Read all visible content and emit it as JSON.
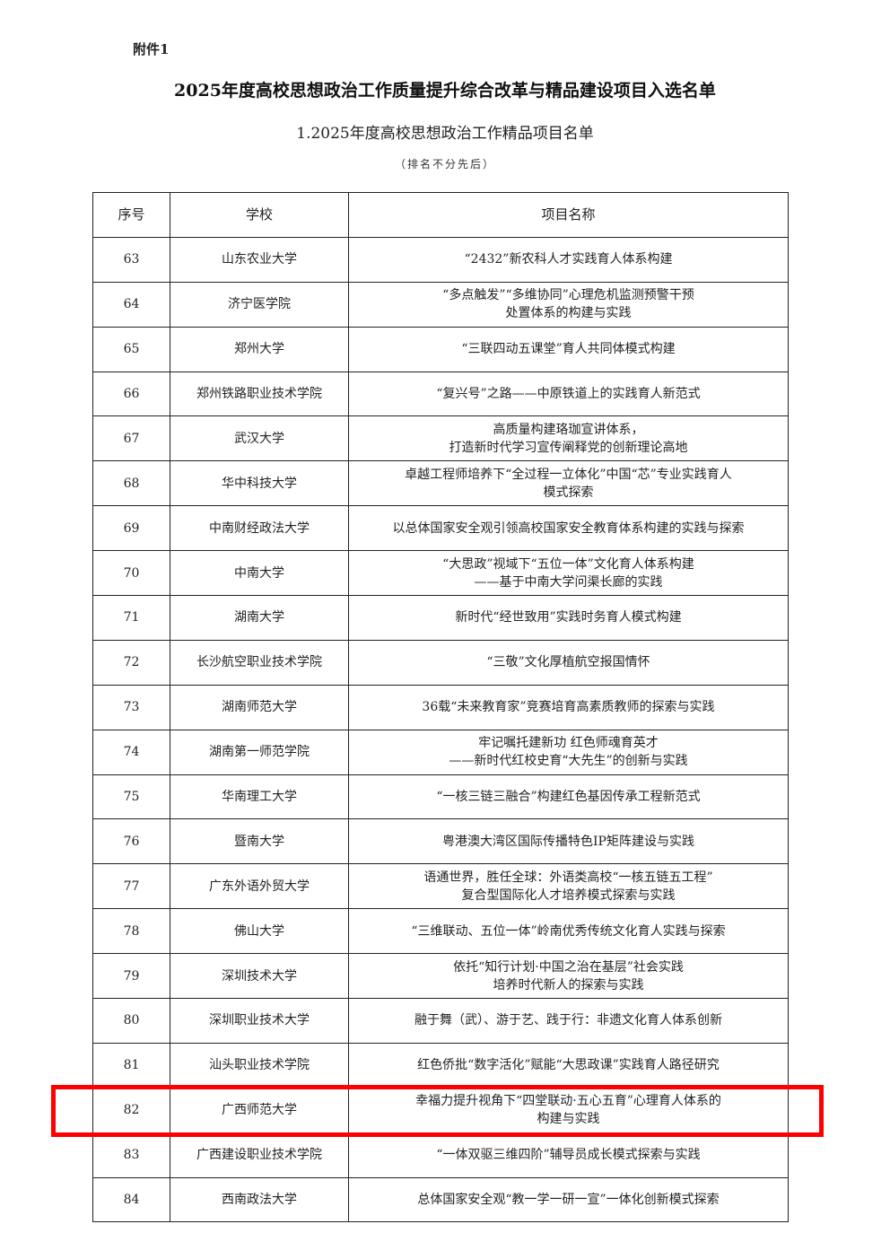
{
  "attachment_label": "附件1",
  "title": "2025年度高校思想政治工作质量提升综合改革与精品建设项目入选名单",
  "subtitle": "1.2025年度高校思想政治工作精品项目名单",
  "note": "（排名不分先后）",
  "table": {
    "headers": [
      "序号",
      "学校",
      "项目名称"
    ],
    "rows": [
      {
        "no": "63",
        "school": "山东农业大学",
        "project": "“2432”新农科人才实践育人体系构建"
      },
      {
        "no": "64",
        "school": "济宁医学院",
        "project": "“多点触发”“多维协同”心理危机监测预警干预\n处置体系的构建与实践"
      },
      {
        "no": "65",
        "school": "郑州大学",
        "project": "“三联四动五课堂”育人共同体模式构建"
      },
      {
        "no": "66",
        "school": "郑州铁路职业技术学院",
        "project": "“复兴号”之路——中原铁道上的实践育人新范式"
      },
      {
        "no": "67",
        "school": "武汉大学",
        "project": "高质量构建珞珈宣讲体系，\n打造新时代学习宣传阐释党的创新理论高地"
      },
      {
        "no": "68",
        "school": "华中科技大学",
        "project": "卓越工程师培养下“全过程一立体化”中国“芯”专业实践育人\n模式探索"
      },
      {
        "no": "69",
        "school": "中南财经政法大学",
        "project": "以总体国家安全观引领高校国家安全教育体系构建的实践与探索"
      },
      {
        "no": "70",
        "school": "中南大学",
        "project": "“大思政”视域下“五位一体”文化育人体系构建\n——基于中南大学问渠长廊的实践"
      },
      {
        "no": "71",
        "school": "湖南大学",
        "project": "新时代“经世致用”实践时务育人模式构建"
      },
      {
        "no": "72",
        "school": "长沙航空职业技术学院",
        "project": "“三敬”文化厚植航空报国情怀"
      },
      {
        "no": "73",
        "school": "湖南师范大学",
        "project": "36载“未来教育家”竞赛培育高素质教师的探索与实践"
      },
      {
        "no": "74",
        "school": "湖南第一师范学院",
        "project": "牢记嘱托建新功 红色师魂育英才\n——新时代红校史育“大先生”的创新与实践"
      },
      {
        "no": "75",
        "school": "华南理工大学",
        "project": "“一核三链三融合”构建红色基因传承工程新范式"
      },
      {
        "no": "76",
        "school": "暨南大学",
        "project": "粤港澳大湾区国际传播特色IP矩阵建设与实践"
      },
      {
        "no": "77",
        "school": "广东外语外贸大学",
        "project": "语通世界，胜任全球：外语类高校“一核五链五工程”\n复合型国际化人才培养模式探索与实践"
      },
      {
        "no": "78",
        "school": "佛山大学",
        "project": "“三维联动、五位一体”岭南优秀传统文化育人实践与探索"
      },
      {
        "no": "79",
        "school": "深圳技术大学",
        "project": "依托“知行计划·中国之治在基层”社会实践\n培养时代新人的探索与实践"
      },
      {
        "no": "80",
        "school": "深圳职业技术大学",
        "project": "融于舞（武）、游于艺、践于行：非遗文化育人体系创新"
      },
      {
        "no": "81",
        "school": "汕头职业技术学院",
        "project": "红色侨批“数字活化”赋能“大思政课”实践育人路径研究"
      },
      {
        "no": "82",
        "school": "广西师范大学",
        "project": "幸福力提升视角下“四堂联动·五心五育”心理育人体系的\n构建与实践",
        "highlighted": true
      },
      {
        "no": "83",
        "school": "广西建设职业技术学院",
        "project": "“一体双驱三维四阶”辅导员成长模式探索与实践"
      },
      {
        "no": "84",
        "school": "西南政法大学",
        "project": "总体国家安全观“教一学一研一宣”一体化创新模式探索"
      }
    ]
  },
  "highlight_color": "#ff0000"
}
